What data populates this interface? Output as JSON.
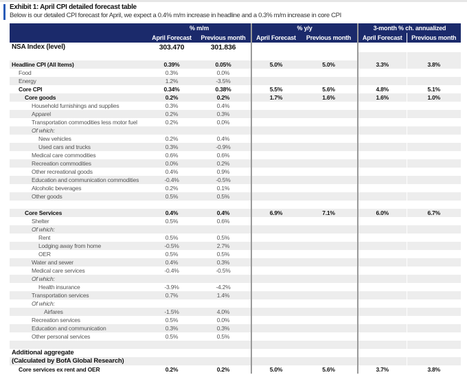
{
  "exhibit": {
    "title": "Exhibit 1: April CPI detailed forecast table",
    "subtitle": "Below is our detailed CPI forecast for April, we expect a 0.4% m/m increase in headline and a 0.3% m/m increase in core CPI"
  },
  "colors": {
    "header_bg": "#1b2a6b",
    "accent": "#2a5cb8",
    "row_shade": "#ededed"
  },
  "header": {
    "groups": [
      "% m/m",
      "% y/y",
      "3-month % ch. annualized"
    ],
    "columns": [
      "April Forecast",
      "Previous month",
      "April Forecast",
      "Previous month",
      "April Forecast",
      "Previous month"
    ]
  },
  "nsa": {
    "label": "NSA Index (level)",
    "forecast": "303.470",
    "previous": "301.836"
  },
  "rows": [
    {
      "label": "Headline CPI (All Items)",
      "indent": 0,
      "style": "bold",
      "v": [
        "0.39%",
        "0.05%",
        "5.0%",
        "5.0%",
        "3.3%",
        "3.8%"
      ]
    },
    {
      "label": "Food",
      "indent": 1,
      "style": "sub",
      "v": [
        "0.3%",
        "0.0%",
        "",
        "",
        "",
        ""
      ]
    },
    {
      "label": "Energy",
      "indent": 1,
      "style": "sub",
      "v": [
        "1.2%",
        "-3.5%",
        "",
        "",
        "",
        ""
      ]
    },
    {
      "label": "Core CPI",
      "indent": 1,
      "style": "bold",
      "v": [
        "0.34%",
        "0.38%",
        "5.5%",
        "5.6%",
        "4.8%",
        "5.1%"
      ]
    },
    {
      "label": "Core goods",
      "indent": 2,
      "style": "bold",
      "v": [
        "0.2%",
        "0.2%",
        "1.7%",
        "1.6%",
        "1.6%",
        "1.0%"
      ]
    },
    {
      "label": "Household furnishings and supplies",
      "indent": 3,
      "style": "sub",
      "v": [
        "0.3%",
        "0.4%",
        "",
        "",
        "",
        ""
      ]
    },
    {
      "label": "Apparel",
      "indent": 3,
      "style": "sub",
      "v": [
        "0.2%",
        "0.3%",
        "",
        "",
        "",
        ""
      ]
    },
    {
      "label": "Transportation commodities less motor fuel",
      "indent": 3,
      "style": "sub",
      "v": [
        "0.2%",
        "0.0%",
        "",
        "",
        "",
        ""
      ]
    },
    {
      "label": "Of which:",
      "indent": 3,
      "style": "ital",
      "v": [
        "",
        "",
        "",
        "",
        "",
        ""
      ]
    },
    {
      "label": "New vehicles",
      "indent": 4,
      "style": "sub",
      "v": [
        "0.2%",
        "0.4%",
        "",
        "",
        "",
        ""
      ]
    },
    {
      "label": "Used cars and trucks",
      "indent": 4,
      "style": "sub",
      "v": [
        "0.3%",
        "-0.9%",
        "",
        "",
        "",
        ""
      ]
    },
    {
      "label": "Medical care commodities",
      "indent": 3,
      "style": "sub",
      "v": [
        "0.6%",
        "0.6%",
        "",
        "",
        "",
        ""
      ]
    },
    {
      "label": "Recreation commodities",
      "indent": 3,
      "style": "sub",
      "v": [
        "0.0%",
        "0.2%",
        "",
        "",
        "",
        ""
      ]
    },
    {
      "label": "Other recreational goods",
      "indent": 3,
      "style": "sub",
      "v": [
        "0.4%",
        "0.9%",
        "",
        "",
        "",
        ""
      ]
    },
    {
      "label": "Education and communication commodities",
      "indent": 3,
      "style": "sub",
      "v": [
        "-0.4%",
        "-0.5%",
        "",
        "",
        "",
        ""
      ]
    },
    {
      "label": "Alcoholic beverages",
      "indent": 3,
      "style": "sub",
      "v": [
        "0.2%",
        "0.1%",
        "",
        "",
        "",
        ""
      ]
    },
    {
      "label": "Other goods",
      "indent": 3,
      "style": "sub",
      "v": [
        "0.5%",
        "0.5%",
        "",
        "",
        "",
        ""
      ]
    },
    {
      "label": "",
      "indent": 0,
      "style": "sub",
      "v": [
        "",
        "",
        "",
        "",
        "",
        ""
      ]
    },
    {
      "label": "Core Services",
      "indent": 2,
      "style": "bold",
      "v": [
        "0.4%",
        "0.4%",
        "6.9%",
        "7.1%",
        "6.0%",
        "6.7%"
      ]
    },
    {
      "label": "Shelter",
      "indent": 3,
      "style": "sub",
      "v": [
        "0.5%",
        "0.6%",
        "",
        "",
        "",
        ""
      ]
    },
    {
      "label": "Of which:",
      "indent": 3,
      "style": "ital",
      "v": [
        "",
        "",
        "",
        "",
        "",
        ""
      ]
    },
    {
      "label": "Rent",
      "indent": 4,
      "style": "sub",
      "v": [
        "0.5%",
        "0.5%",
        "",
        "",
        "",
        ""
      ]
    },
    {
      "label": "Lodging away from home",
      "indent": 4,
      "style": "sub",
      "v": [
        "-0.5%",
        "2.7%",
        "",
        "",
        "",
        ""
      ]
    },
    {
      "label": "OER",
      "indent": 4,
      "style": "sub",
      "v": [
        "0.5%",
        "0.5%",
        "",
        "",
        "",
        ""
      ]
    },
    {
      "label": "Water and sewer",
      "indent": 3,
      "style": "sub",
      "v": [
        "0.4%",
        "0.3%",
        "",
        "",
        "",
        ""
      ]
    },
    {
      "label": "Medical care services",
      "indent": 3,
      "style": "sub",
      "v": [
        "-0.4%",
        "-0.5%",
        "",
        "",
        "",
        ""
      ]
    },
    {
      "label": "Of which:",
      "indent": 3,
      "style": "ital",
      "v": [
        "",
        "",
        "",
        "",
        "",
        ""
      ]
    },
    {
      "label": "Health insurance",
      "indent": 4,
      "style": "sub",
      "v": [
        "-3.9%",
        "-4.2%",
        "",
        "",
        "",
        ""
      ]
    },
    {
      "label": "Transportation services",
      "indent": 3,
      "style": "sub",
      "v": [
        "0.7%",
        "1.4%",
        "",
        "",
        "",
        ""
      ]
    },
    {
      "label": "Of which:",
      "indent": 3,
      "style": "ital",
      "v": [
        "",
        "",
        "",
        "",
        "",
        ""
      ]
    },
    {
      "label": "Airfares",
      "indent": 5,
      "style": "sub",
      "v": [
        "-1.5%",
        "4.0%",
        "",
        "",
        "",
        ""
      ]
    },
    {
      "label": "Recreation services",
      "indent": 3,
      "style": "sub",
      "v": [
        "0.5%",
        "0.0%",
        "",
        "",
        "",
        ""
      ]
    },
    {
      "label": "Education and communication",
      "indent": 3,
      "style": "sub",
      "v": [
        "0.3%",
        "0.3%",
        "",
        "",
        "",
        ""
      ]
    },
    {
      "label": "Other personal services",
      "indent": 3,
      "style": "sub",
      "v": [
        "0.5%",
        "0.5%",
        "",
        "",
        "",
        ""
      ]
    },
    {
      "label": "",
      "indent": 0,
      "style": "sub",
      "v": [
        "",
        "",
        "",
        "",
        "",
        ""
      ]
    },
    {
      "label": "Additional aggregate",
      "indent": 0,
      "style": "bigbold",
      "v": [
        "",
        "",
        "",
        "",
        "",
        ""
      ]
    },
    {
      "label": "(Calculated by BofA Global Research)",
      "indent": 0,
      "style": "bigbold",
      "v": [
        "",
        "",
        "",
        "",
        "",
        ""
      ]
    },
    {
      "label": "Core services ex rent and OER",
      "indent": 1,
      "style": "bold",
      "v": [
        "0.2%",
        "0.2%",
        "5.0%",
        "5.6%",
        "3.7%",
        "3.8%"
      ]
    }
  ]
}
